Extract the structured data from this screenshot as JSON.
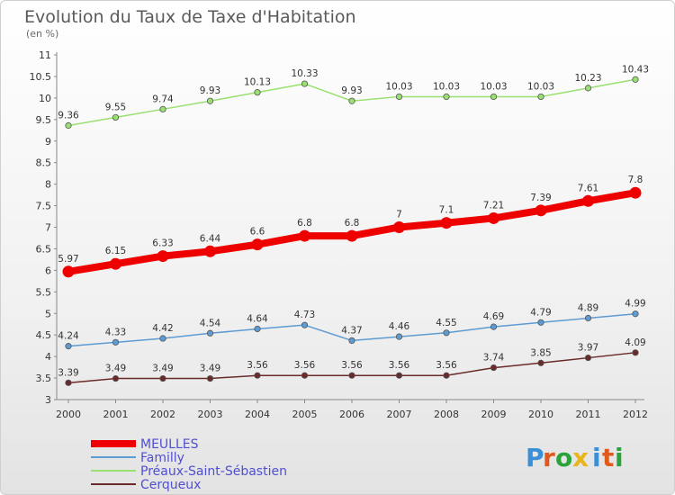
{
  "chart_data": {
    "type": "line",
    "title": "Evolution du Taux de Taxe d'Habitation",
    "subtitle": "(en %)",
    "x": [
      "2000",
      "2001",
      "2002",
      "2003",
      "2004",
      "2005",
      "2006",
      "2007",
      "2008",
      "2009",
      "2010",
      "2011",
      "2012"
    ],
    "ylim": [
      3,
      11
    ],
    "yticks": [
      "3",
      "3.5",
      "4",
      "4.5",
      "5",
      "5.5",
      "6",
      "6.5",
      "7",
      "7.5",
      "8",
      "8.5",
      "9",
      "9.5",
      "10",
      "10.5",
      "11"
    ],
    "grid": false,
    "legend_position": "bottom-left",
    "series": [
      {
        "name": "MEULLES",
        "color": "#ee0000",
        "values": [
          5.97,
          6.15,
          6.33,
          6.44,
          6.6,
          6.8,
          6.8,
          7,
          7.1,
          7.21,
          7.39,
          7.61,
          7.8
        ],
        "labels": [
          "5.97",
          "6.15",
          "6.33",
          "6.44",
          "6.6",
          "6.8",
          "6.8",
          "7",
          "7.1",
          "7.21",
          "7.39",
          "7.61",
          "7.8"
        ]
      },
      {
        "name": "Familly",
        "color": "#5d9bd3",
        "values": [
          4.24,
          4.33,
          4.42,
          4.54,
          4.64,
          4.73,
          4.37,
          4.46,
          4.55,
          4.69,
          4.79,
          4.89,
          4.99
        ],
        "labels": [
          "4.24",
          "4.33",
          "4.42",
          "4.54",
          "4.64",
          "4.73",
          "4.37",
          "4.46",
          "4.55",
          "4.69",
          "4.79",
          "4.89",
          "4.99"
        ]
      },
      {
        "name": "Préaux-Saint-Sébastien",
        "color": "#99e070",
        "values": [
          9.36,
          9.55,
          9.74,
          9.93,
          10.13,
          10.33,
          9.93,
          10.03,
          10.03,
          10.03,
          10.03,
          10.23,
          10.43
        ],
        "labels": [
          "9.36",
          "9.55",
          "9.74",
          "9.93",
          "10.13",
          "10.33",
          "9.93",
          "10.03",
          "10.03",
          "10.03",
          "10.03",
          "10.23",
          "10.43"
        ]
      },
      {
        "name": "Cerqueux",
        "color": "#6b2a2a",
        "values": [
          3.39,
          3.49,
          3.49,
          3.49,
          3.56,
          3.56,
          3.56,
          3.56,
          3.56,
          3.74,
          3.85,
          3.97,
          4.09
        ],
        "labels": [
          "3.39",
          "3.49",
          "3.49",
          "3.49",
          "3.56",
          "3.56",
          "3.56",
          "3.56",
          "3.56",
          "3.74",
          "3.85",
          "3.97",
          "4.09"
        ]
      }
    ]
  },
  "logo": {
    "text": "Prox iti",
    "letters": [
      "P",
      "r",
      "o",
      "x",
      "i",
      "t",
      "i"
    ],
    "colors": [
      "#3a8fd6",
      "#e05a1e",
      "#2aa43a",
      "#e8b51a",
      "#3a8fd6",
      "#e05a1e",
      "#2aa43a"
    ]
  }
}
